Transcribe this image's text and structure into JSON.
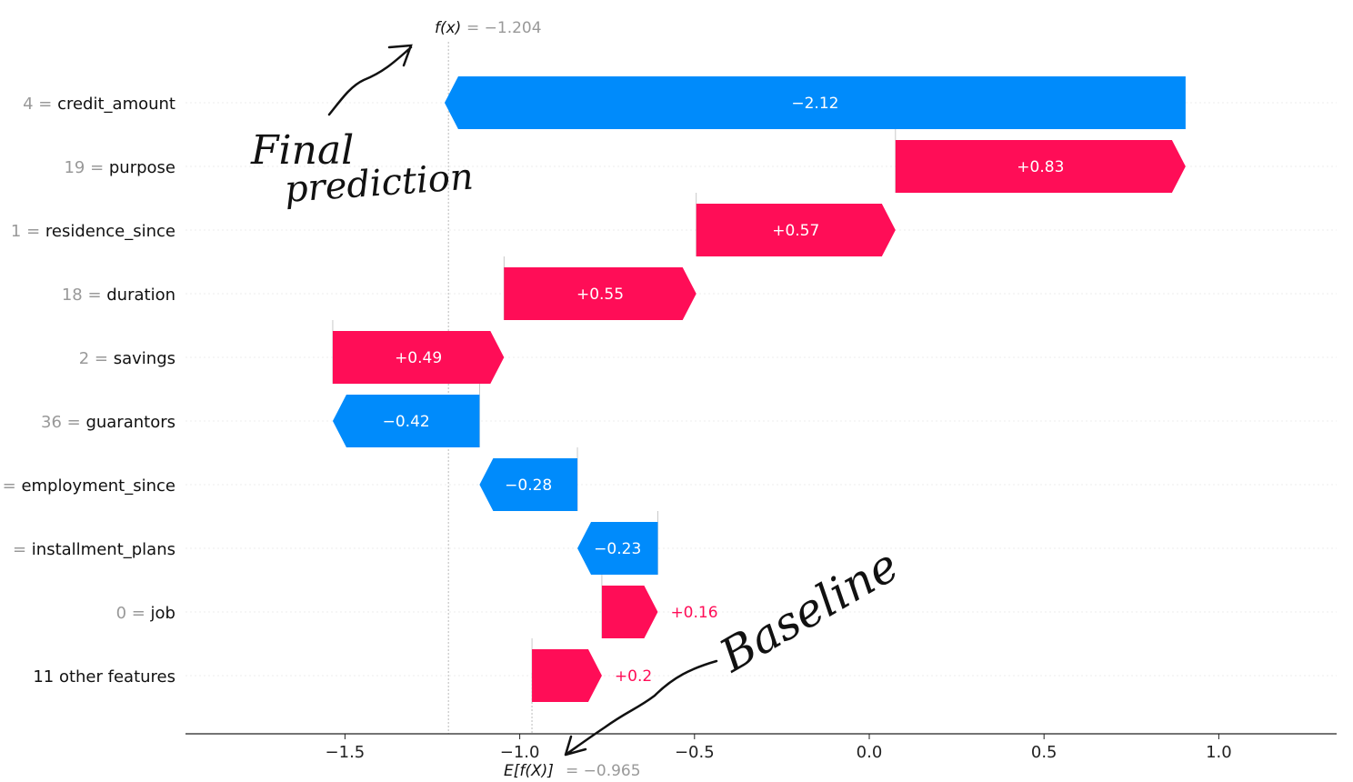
{
  "chart_data": {
    "type": "waterfall",
    "xlim": [
      -1.9,
      1.4
    ],
    "xticks": [
      "-1.5",
      "-1.0",
      "-0.5",
      "0.0",
      "0.5",
      "1.0"
    ],
    "xtick_values": [
      -1.5,
      -1.0,
      -0.5,
      0.0,
      0.5,
      1.0
    ],
    "fx_label": "f(x)",
    "fx_value_text": "= −1.204",
    "fx": -1.204,
    "base_label": "E[f(X)]",
    "base_value_text": "= −0.965",
    "base": -0.965,
    "colors": {
      "positive": "#ff0d57",
      "negative": "#008bfb",
      "axis": "#222222"
    },
    "features": [
      {
        "value": "4",
        "name": "credit_amount",
        "shap": -2.12,
        "text": "−2.12"
      },
      {
        "value": "19",
        "name": "purpose",
        "shap": 0.83,
        "text": "+0.83"
      },
      {
        "value": "1",
        "name": "residence_since",
        "shap": 0.57,
        "text": "+0.57"
      },
      {
        "value": "18",
        "name": "duration",
        "shap": 0.55,
        "text": "+0.55"
      },
      {
        "value": "2",
        "name": "savings",
        "shap": 0.49,
        "text": "+0.49"
      },
      {
        "value": "36",
        "name": "guarantors",
        "shap": -0.42,
        "text": "−0.42"
      },
      {
        "value": "",
        "name": "employment_since",
        "shap": -0.28,
        "text": "−0.28"
      },
      {
        "value": "",
        "name": "installment_plans",
        "shap": -0.23,
        "text": "−0.23"
      },
      {
        "value": "0",
        "name": "job",
        "shap": 0.16,
        "text": "+0.16"
      },
      {
        "value": null,
        "name": "11 other features",
        "shap": 0.2,
        "text": "+0.2"
      }
    ]
  },
  "annotations": {
    "final": [
      "Final",
      "prediction"
    ],
    "baseline": "Baseline"
  }
}
